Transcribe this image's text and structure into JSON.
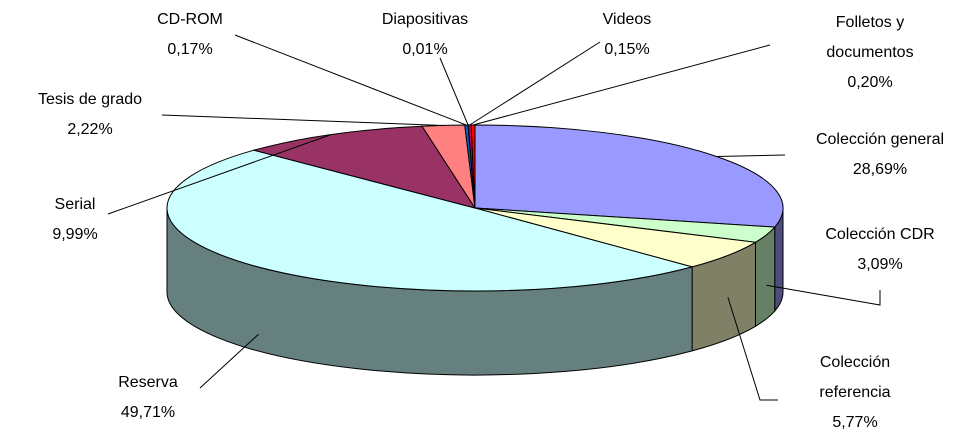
{
  "chart_data": {
    "type": "pie",
    "categories": [
      "Colección general",
      "Colección CDR",
      "Colección referencia",
      "Reserva",
      "Serial",
      "Tesis de grado",
      "CD-ROM",
      "Diapositivas",
      "Videos",
      "Folletos y documentos"
    ],
    "values": [
      28.69,
      3.09,
      5.77,
      49.71,
      9.99,
      2.22,
      0.17,
      0.01,
      0.15,
      0.2
    ],
    "value_labels": [
      "28,69%",
      "3,09%",
      "5,77%",
      "49,71%",
      "9,99%",
      "2,22%",
      "0,17%",
      "0,01%",
      "0,15%",
      "0,20%"
    ],
    "colors": [
      "#9999ff",
      "#ccffcc",
      "#ffffcc",
      "#ccffff",
      "#993366",
      "#ff8080",
      "#0066cc",
      "#ccccff",
      "#cc0066",
      "#ff0000"
    ]
  }
}
